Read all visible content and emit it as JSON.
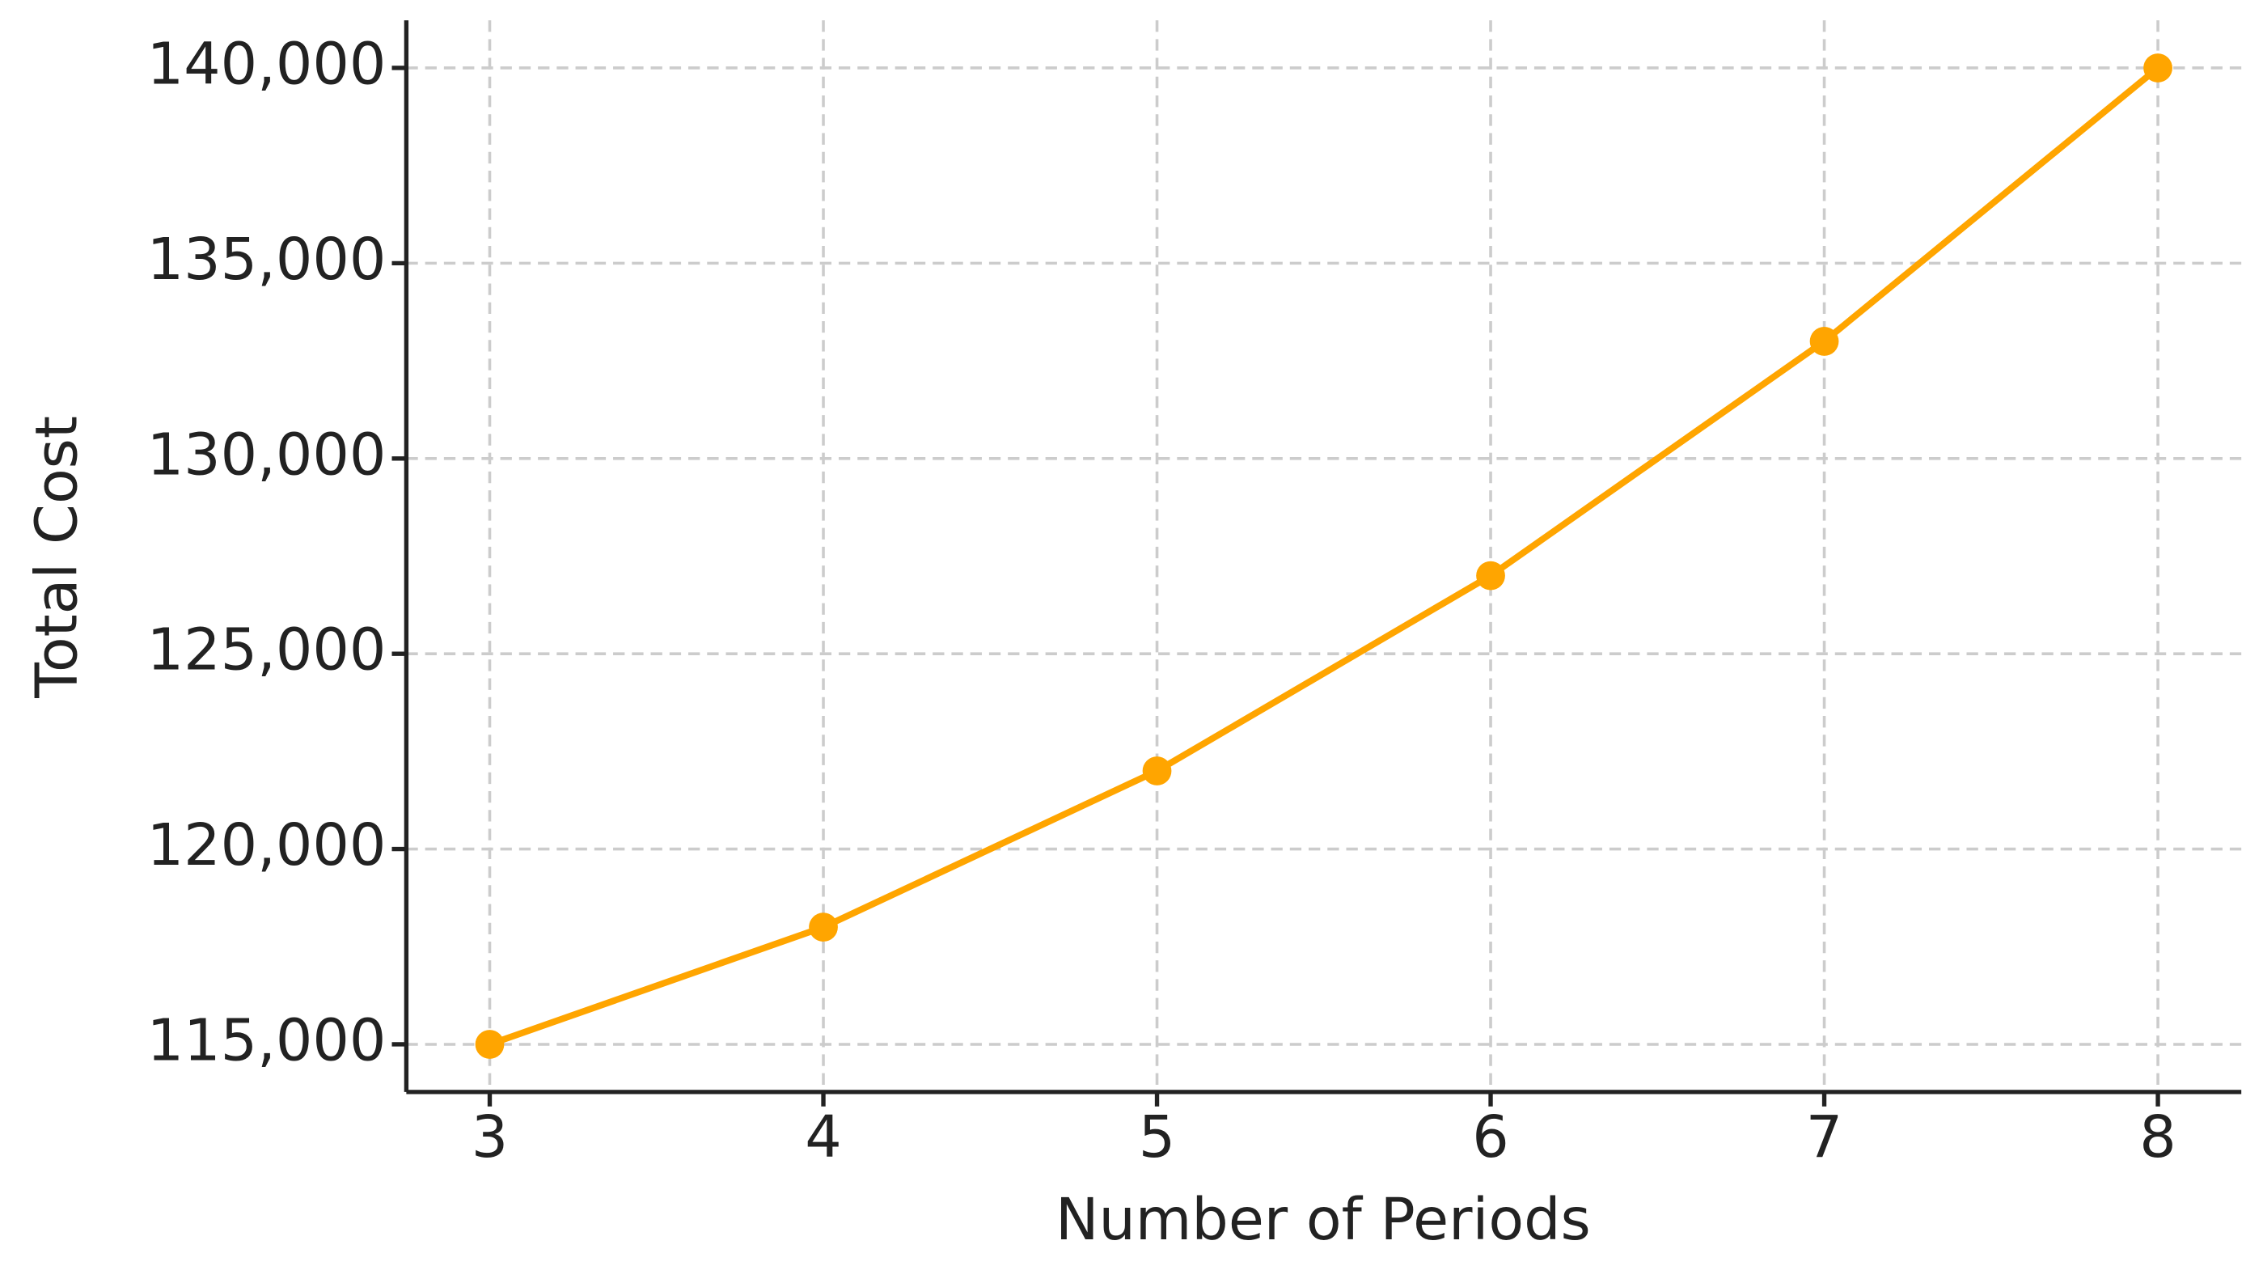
{
  "chart_data": {
    "type": "line",
    "x_label": "Number of Periods",
    "y_label": "Total Cost",
    "x": [
      3,
      4,
      5,
      6,
      7,
      8
    ],
    "series": [
      {
        "color": "#ffa500",
        "values": [
          115000,
          118000,
          122000,
          127000,
          133000,
          140000
        ]
      }
    ],
    "xlim": [
      2.75,
      8.25
    ],
    "ylim": [
      113780,
      141220
    ],
    "xticks": [
      3,
      4,
      5,
      6,
      7,
      8
    ],
    "yticks": [
      {
        "value": 115000,
        "label": "115,000"
      },
      {
        "value": 120000,
        "label": "120,000"
      },
      {
        "value": 125000,
        "label": "125,000"
      },
      {
        "value": 130000,
        "label": "130,000"
      },
      {
        "value": 135000,
        "label": "135,000"
      },
      {
        "value": 140000,
        "label": "140,000"
      }
    ],
    "grid": true
  }
}
